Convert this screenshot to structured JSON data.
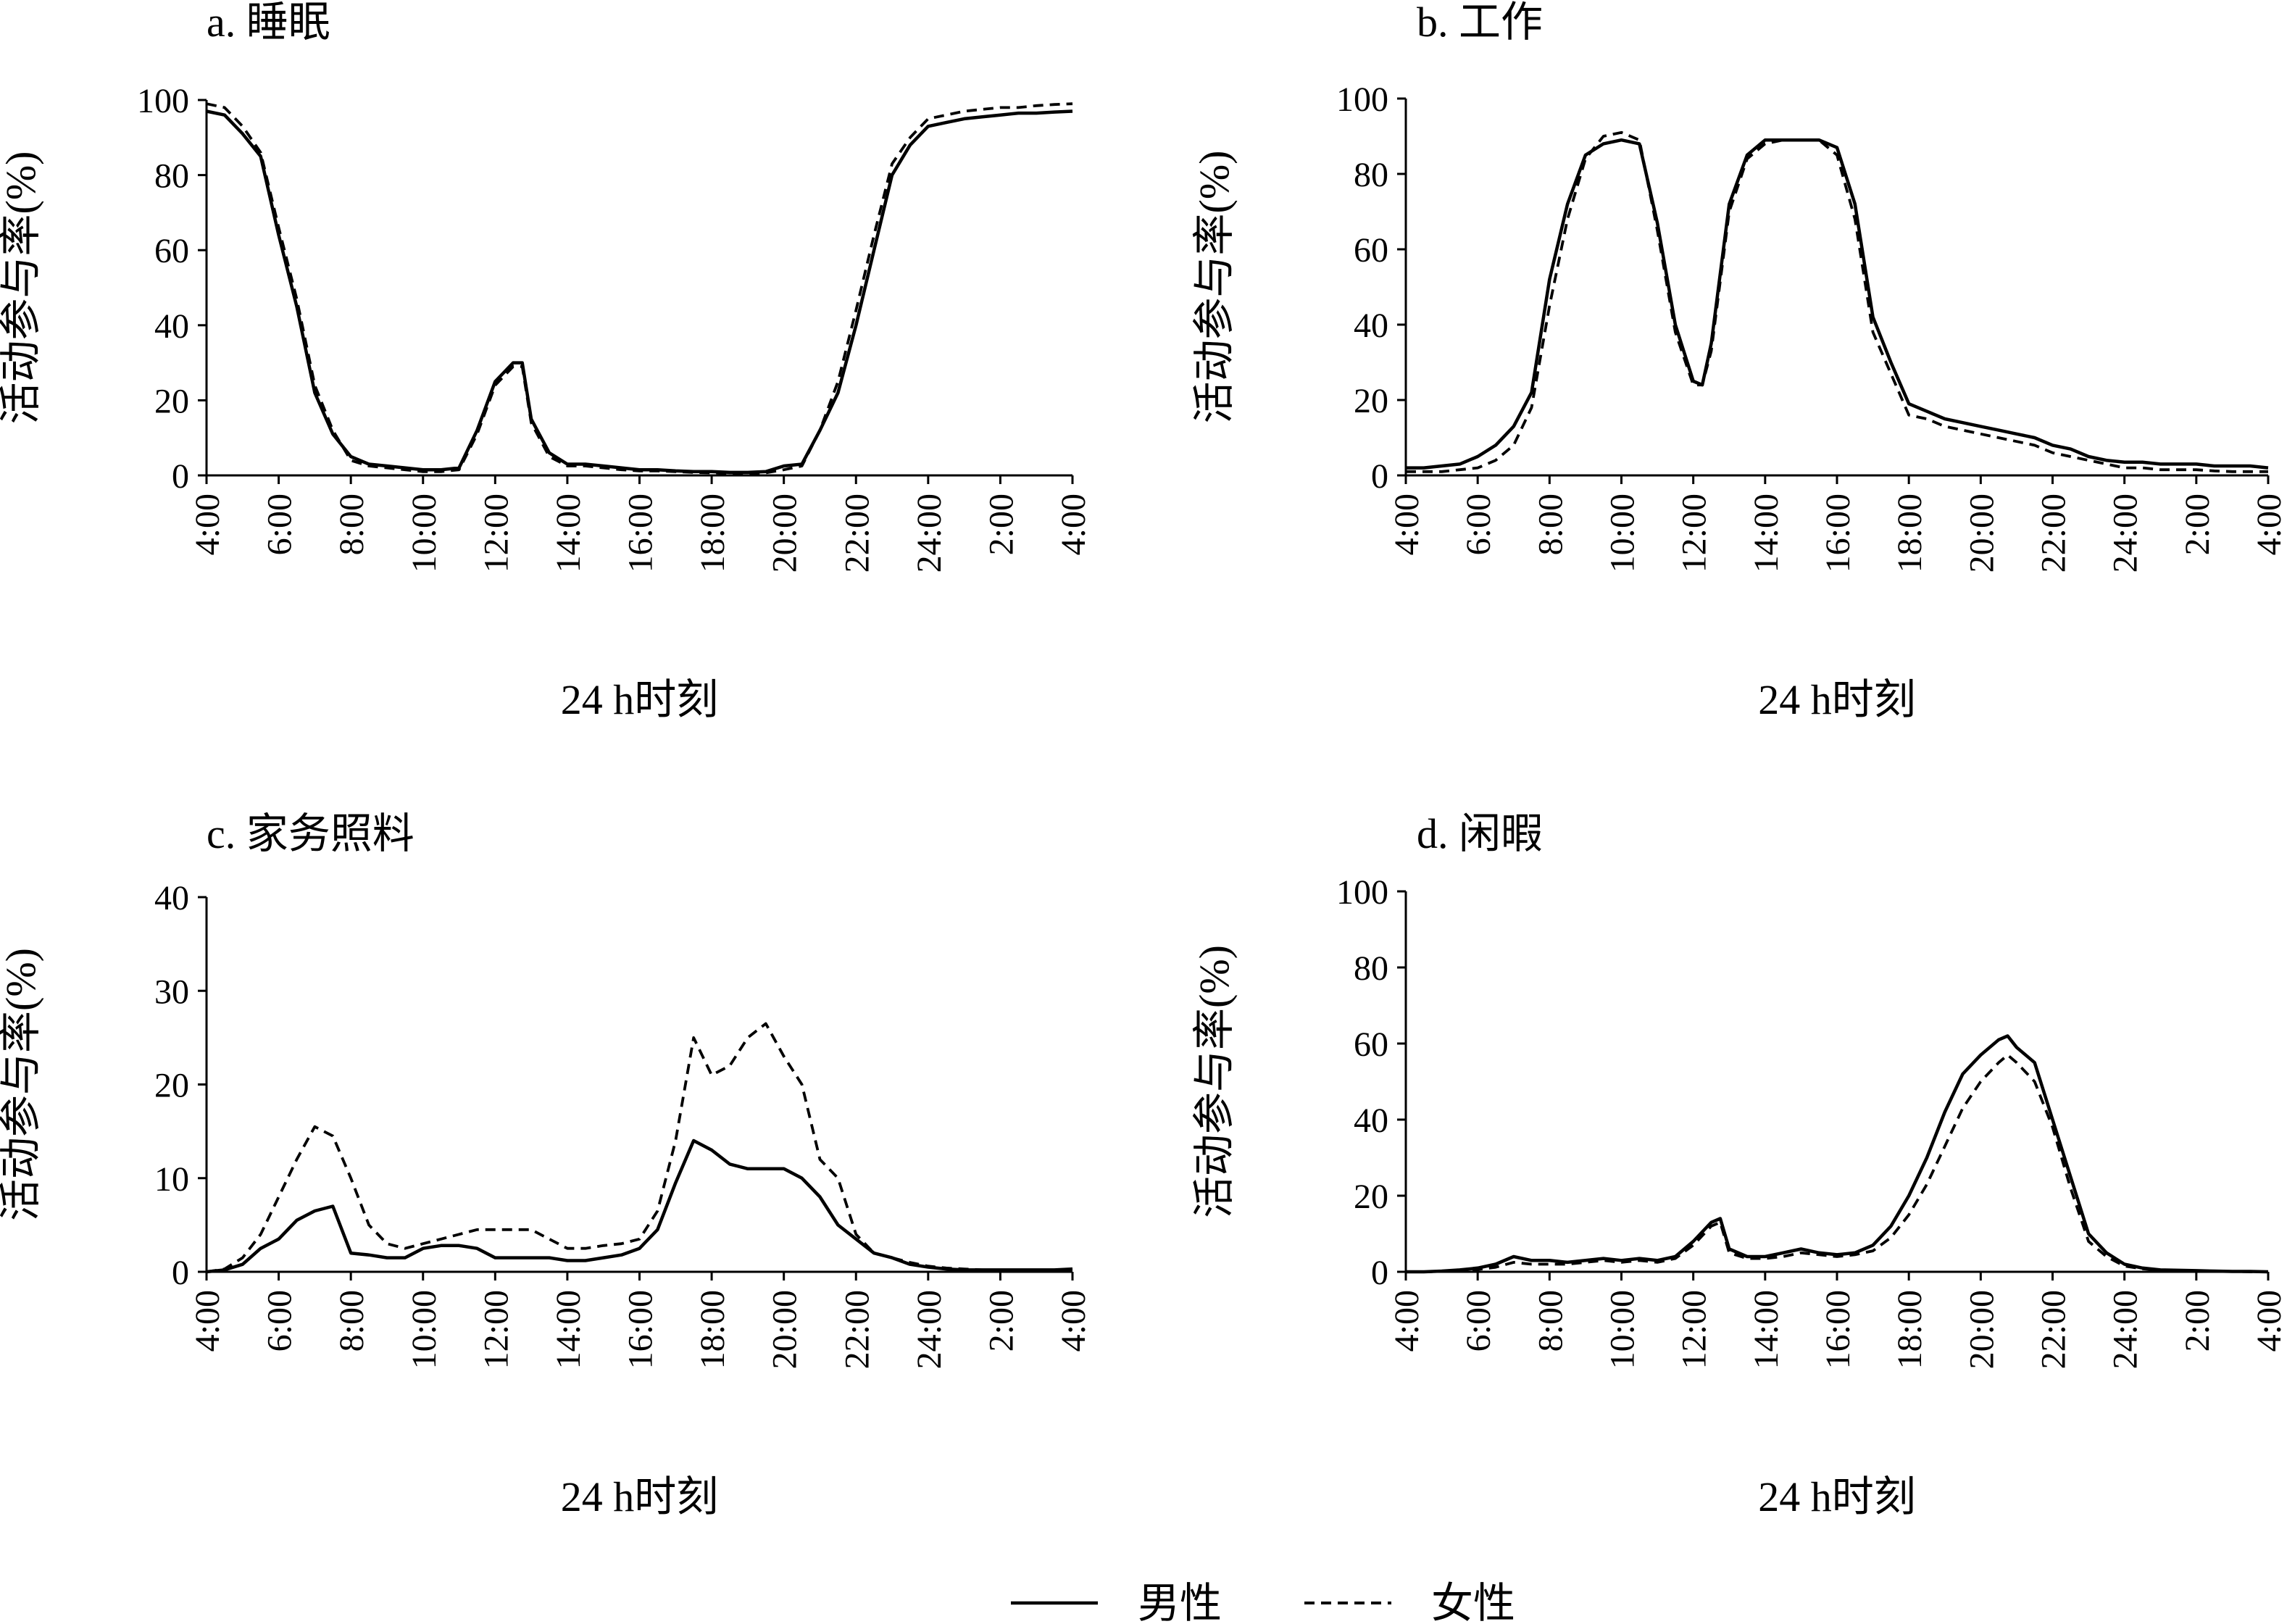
{
  "legend": {
    "entries": [
      {
        "label": "男性",
        "line_style": "solid"
      },
      {
        "label": "女性",
        "line_style": "dashed"
      }
    ]
  },
  "chart_data": [
    {
      "type": "line",
      "title": "a. 睡眠",
      "xlabel": "24 h时刻",
      "ylabel": "活动参与率(%)",
      "ylim": [
        0,
        100
      ],
      "yticks": [
        "0",
        "20",
        "40",
        "60",
        "80",
        "100"
      ],
      "xlim": [
        4,
        28
      ],
      "xticks": [
        "4:00",
        "6:00",
        "8:00",
        "10:00",
        "12:00",
        "14:00",
        "16:00",
        "18:00",
        "20:00",
        "22:00",
        "24:00",
        "2:00",
        "4:00"
      ],
      "x": [
        4.0,
        4.5,
        5.0,
        5.5,
        6.0,
        6.5,
        7.0,
        7.5,
        8.0,
        8.5,
        9.0,
        9.5,
        10.0,
        10.5,
        11.0,
        11.5,
        12.0,
        12.5,
        12.75,
        13.0,
        13.5,
        14.0,
        14.5,
        15.0,
        15.5,
        16.0,
        16.5,
        17.0,
        17.5,
        18.0,
        18.5,
        19.0,
        19.5,
        20.0,
        20.5,
        21.0,
        21.5,
        22.0,
        22.5,
        23.0,
        23.5,
        24.0,
        24.5,
        25.0,
        25.5,
        26.0,
        26.5,
        27.0,
        27.5,
        28.0
      ],
      "series": [
        {
          "name": "男性",
          "values": [
            97,
            96,
            91,
            85,
            64,
            45,
            22,
            11,
            5,
            3,
            2.5,
            2,
            1.5,
            1.5,
            2,
            12,
            25,
            30,
            30,
            15,
            6,
            3,
            3,
            2.5,
            2,
            1.5,
            1.5,
            1.2,
            1,
            1,
            0.8,
            0.8,
            1,
            2.5,
            3,
            12,
            22,
            40,
            60,
            80,
            88,
            93,
            94,
            95,
            95.5,
            96,
            96.5,
            96.5,
            96.8,
            97
          ]
        },
        {
          "name": "女性",
          "values": [
            99,
            98,
            93,
            86,
            66,
            47,
            24,
            12,
            4,
            2.5,
            2,
            1.5,
            1,
            1,
            1.5,
            11,
            24,
            29,
            29,
            14,
            5,
            2.5,
            2.5,
            2,
            1.5,
            1.2,
            1.2,
            1,
            0.8,
            0.7,
            0.6,
            0.6,
            0.7,
            1.5,
            2.5,
            12,
            25,
            44,
            64,
            83,
            90,
            95,
            96,
            97,
            97.5,
            98,
            98,
            98.5,
            98.8,
            99
          ]
        }
      ]
    },
    {
      "type": "line",
      "title": "b. 工作",
      "xlabel": "24 h时刻",
      "ylabel": "活动参与率(%)",
      "ylim": [
        0,
        100
      ],
      "yticks": [
        "0",
        "20",
        "40",
        "60",
        "80",
        "100"
      ],
      "xlim": [
        4,
        28
      ],
      "xticks": [
        "4:00",
        "6:00",
        "8:00",
        "10:00",
        "12:00",
        "14:00",
        "16:00",
        "18:00",
        "20:00",
        "22:00",
        "24:00",
        "2:00",
        "4:00"
      ],
      "x": [
        4.0,
        4.5,
        5.0,
        5.5,
        6.0,
        6.5,
        7.0,
        7.5,
        8.0,
        8.5,
        9.0,
        9.5,
        10.0,
        10.5,
        11.0,
        11.5,
        12.0,
        12.25,
        12.5,
        13.0,
        13.5,
        14.0,
        14.5,
        15.0,
        15.5,
        16.0,
        16.5,
        17.0,
        17.5,
        18.0,
        18.5,
        19.0,
        19.5,
        20.0,
        20.5,
        21.0,
        21.5,
        22.0,
        22.5,
        23.0,
        23.5,
        24.0,
        24.5,
        25.0,
        25.5,
        26.0,
        26.5,
        27.0,
        27.5,
        28.0
      ],
      "series": [
        {
          "name": "男性",
          "values": [
            2,
            2,
            2.5,
            3,
            5,
            8,
            13,
            22,
            52,
            72,
            85,
            88,
            89,
            88,
            67,
            40,
            25,
            24,
            35,
            72,
            85,
            89,
            89,
            89,
            89,
            87,
            72,
            42,
            30,
            19,
            17,
            15,
            14,
            13,
            12,
            11,
            10,
            8,
            7,
            5,
            4,
            3.5,
            3.5,
            3,
            3,
            3,
            2.5,
            2.5,
            2.5,
            2
          ]
        },
        {
          "name": "女性",
          "values": [
            1,
            1,
            1,
            1.5,
            2,
            4,
            8,
            18,
            45,
            68,
            84,
            90,
            91,
            89,
            65,
            38,
            24,
            24,
            33,
            70,
            84,
            88,
            89,
            89,
            89,
            85,
            68,
            38,
            27,
            16,
            15,
            13,
            12,
            11,
            10,
            9,
            8,
            6,
            5,
            4,
            3,
            2,
            2,
            1.5,
            1.5,
            1.5,
            1.2,
            1,
            1,
            1
          ]
        }
      ]
    },
    {
      "type": "line",
      "title": "c. 家务照料",
      "xlabel": "24 h时刻",
      "ylabel": "活动参与率(%)",
      "ylim": [
        0,
        40
      ],
      "yticks": [
        "0",
        "10",
        "20",
        "30",
        "40"
      ],
      "xlim": [
        4,
        28
      ],
      "xticks": [
        "4:00",
        "6:00",
        "8:00",
        "10:00",
        "12:00",
        "14:00",
        "16:00",
        "18:00",
        "20:00",
        "22:00",
        "24:00",
        "2:00",
        "4:00"
      ],
      "x": [
        4.0,
        4.5,
        5.0,
        5.5,
        6.0,
        6.5,
        7.0,
        7.5,
        8.0,
        8.5,
        9.0,
        9.5,
        10.0,
        10.5,
        11.0,
        11.5,
        12.0,
        12.5,
        13.0,
        13.5,
        14.0,
        14.5,
        15.0,
        15.5,
        16.0,
        16.5,
        17.0,
        17.5,
        18.0,
        18.5,
        19.0,
        19.5,
        20.0,
        20.5,
        21.0,
        21.5,
        22.0,
        22.5,
        23.0,
        23.5,
        24.0,
        24.5,
        25.0,
        25.5,
        26.0,
        26.5,
        27.0,
        27.5,
        28.0
      ],
      "series": [
        {
          "name": "男性",
          "values": [
            0,
            0.2,
            0.8,
            2.5,
            3.5,
            5.5,
            6.5,
            7,
            2,
            1.8,
            1.5,
            1.5,
            2.5,
            2.8,
            2.8,
            2.5,
            1.5,
            1.5,
            1.5,
            1.5,
            1.2,
            1.2,
            1.5,
            1.8,
            2.5,
            4.5,
            9.5,
            14,
            13,
            11.5,
            11,
            11,
            11,
            10,
            8,
            5,
            3.5,
            2,
            1.5,
            0.8,
            0.5,
            0.3,
            0.2,
            0.2,
            0.2,
            0.2,
            0.2,
            0.2,
            0.3
          ]
        },
        {
          "name": "女性",
          "values": [
            0,
            0.3,
            1.5,
            4,
            8,
            12,
            15.5,
            14.5,
            10,
            5,
            3,
            2.5,
            3,
            3.5,
            4,
            4.5,
            4.5,
            4.5,
            4.5,
            3.5,
            2.5,
            2.5,
            2.8,
            3,
            3.5,
            6.5,
            14,
            25,
            21,
            22,
            25,
            26.5,
            23,
            20,
            12,
            10,
            4,
            2,
            1.5,
            1,
            0.6,
            0.4,
            0.3,
            0.2,
            0.2,
            0.2,
            0.2,
            0.2,
            0.2
          ]
        }
      ]
    },
    {
      "type": "line",
      "title": "d. 闲暇",
      "xlabel": "24 h时刻",
      "ylabel": "活动参与率(%)",
      "ylim": [
        0,
        100
      ],
      "yticks": [
        "0",
        "20",
        "40",
        "60",
        "80",
        "100"
      ],
      "xlim": [
        4,
        28
      ],
      "xticks": [
        "4:00",
        "6:00",
        "8:00",
        "10:00",
        "12:00",
        "14:00",
        "16:00",
        "18:00",
        "20:00",
        "22:00",
        "24:00",
        "2:00",
        "4:00"
      ],
      "x": [
        4.0,
        4.5,
        5.0,
        5.5,
        6.0,
        6.5,
        7.0,
        7.5,
        8.0,
        8.5,
        9.0,
        9.5,
        10.0,
        10.5,
        11.0,
        11.5,
        12.0,
        12.5,
        12.75,
        13.0,
        13.5,
        14.0,
        14.5,
        15.0,
        15.5,
        16.0,
        16.5,
        17.0,
        17.5,
        18.0,
        18.5,
        19.0,
        19.5,
        20.0,
        20.5,
        20.75,
        21.0,
        21.5,
        22.0,
        22.5,
        23.0,
        23.5,
        24.0,
        24.5,
        25.0,
        25.5,
        26.0,
        26.5,
        27.0,
        27.5,
        28.0
      ],
      "series": [
        {
          "name": "男性",
          "values": [
            0,
            0,
            0.2,
            0.5,
            1,
            2,
            4,
            3,
            3,
            2.5,
            3,
            3.5,
            3,
            3.5,
            3,
            4,
            8,
            13,
            14,
            6,
            4,
            4,
            5,
            6,
            5,
            4.5,
            5,
            7,
            12,
            20,
            30,
            42,
            52,
            57,
            61,
            62,
            59,
            55,
            40,
            25,
            10,
            5,
            2,
            1,
            0.5,
            0.4,
            0.3,
            0.2,
            0.1,
            0.1,
            0
          ]
        },
        {
          "name": "女性",
          "values": [
            0,
            0,
            0.1,
            0.3,
            0.6,
            1.2,
            2.5,
            2,
            2,
            2,
            2.5,
            3,
            2.5,
            3,
            2.5,
            3.5,
            7,
            12,
            13,
            5,
            3.5,
            3.5,
            4,
            5,
            4.5,
            4,
            4.5,
            5.5,
            9,
            15,
            23,
            33,
            43,
            50,
            55,
            57,
            55,
            50,
            38,
            22,
            8,
            4,
            1.5,
            0.8,
            0.4,
            0.3,
            0.2,
            0.1,
            0.1,
            0,
            0
          ]
        }
      ]
    }
  ]
}
